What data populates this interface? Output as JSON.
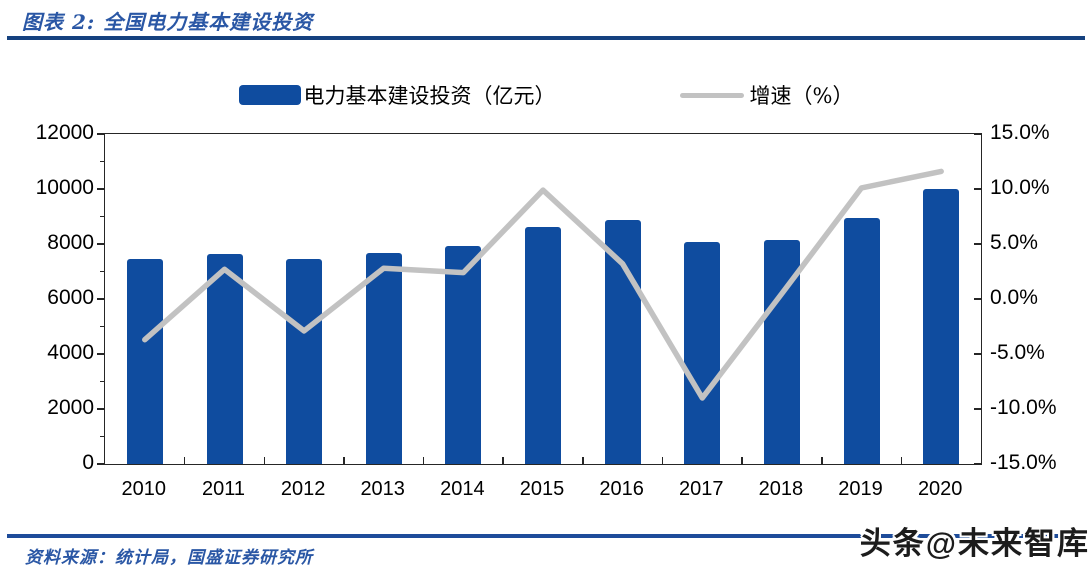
{
  "header": {
    "title": "图表 2: 全国电力基本建设投资"
  },
  "footer": {
    "source": "资料来源：统计局，国盛证券研究所",
    "watermark": "头条@未来智库"
  },
  "colors": {
    "bar": "#0f4c9f",
    "line": "#c2c2c2",
    "title_text": "#2a57a5",
    "top_rule": "#15417f",
    "bottom_rule": "#1e4c9a",
    "axis": "#262626"
  },
  "chart_data": {
    "type": "bar+line",
    "title": "全国电力基本建设投资",
    "categories": [
      "2010",
      "2011",
      "2012",
      "2013",
      "2014",
      "2015",
      "2016",
      "2017",
      "2018",
      "2019",
      "2020"
    ],
    "series": [
      {
        "name": "电力基本建设投资（亿元）",
        "type": "bar",
        "axis": "left",
        "color": "#0f4c9f",
        "values": [
          7450,
          7650,
          7450,
          7680,
          7930,
          8630,
          8890,
          8060,
          8150,
          8950,
          10000
        ]
      },
      {
        "name": "增速（%）",
        "type": "line",
        "axis": "right",
        "color": "#c2c2c2",
        "values": [
          -3.7,
          2.7,
          -2.9,
          2.8,
          2.4,
          9.9,
          3.2,
          -9.0,
          0.5,
          10.1,
          11.6
        ]
      }
    ],
    "left_axis": {
      "min": 0,
      "max": 12000,
      "tick_step": 2000,
      "labels": [
        "12000",
        "10000",
        "8000",
        "6000",
        "4000",
        "2000",
        "0"
      ]
    },
    "right_axis": {
      "min": -15,
      "max": 15,
      "tick_step": 5,
      "labels": [
        "15.0%",
        "10.0%",
        "5.0%",
        "0.0%",
        "-5.0%",
        "-10.0%",
        "-15.0%"
      ]
    },
    "legend_position": "top",
    "grid": false
  }
}
